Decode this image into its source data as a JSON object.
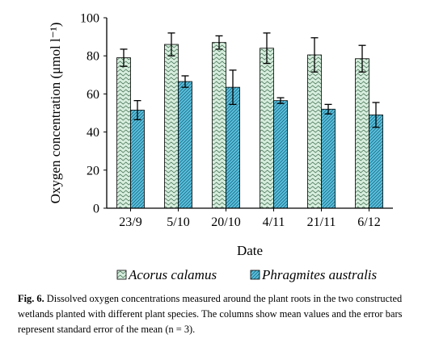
{
  "chart_data": {
    "type": "bar",
    "categories": [
      "23/9",
      "5/10",
      "20/10",
      "4/11",
      "21/11",
      "6/12"
    ],
    "series": [
      {
        "name": "Acorus calamus",
        "values": [
          79,
          86,
          87,
          84,
          80.5,
          78.5
        ],
        "errors": [
          4.5,
          6,
          3.5,
          8,
          9,
          7
        ],
        "color": "#d6eddd",
        "pattern": "wave"
      },
      {
        "name": "Phragmites australis",
        "values": [
          51.5,
          66.5,
          63.5,
          56.5,
          52,
          49
        ],
        "errors": [
          5,
          3,
          9,
          1.5,
          2.5,
          6.5
        ],
        "color": "#5bc3df",
        "pattern": "diagonal"
      }
    ],
    "xlabel": "Date",
    "ylabel": "Oxygen concentration (μmol l⁻¹)",
    "ylim": [
      0,
      100
    ],
    "yticks": [
      0,
      20,
      40,
      60,
      80,
      100
    ],
    "grid": false,
    "legend_position": "bottom"
  },
  "caption": {
    "label": "Fig. 6.",
    "text": " Dissolved oxygen concentrations measured around the plant roots in the two constructed wetlands planted with different plant species. The columns show mean values and the error bars represent standard error of the mean (n = 3)."
  }
}
